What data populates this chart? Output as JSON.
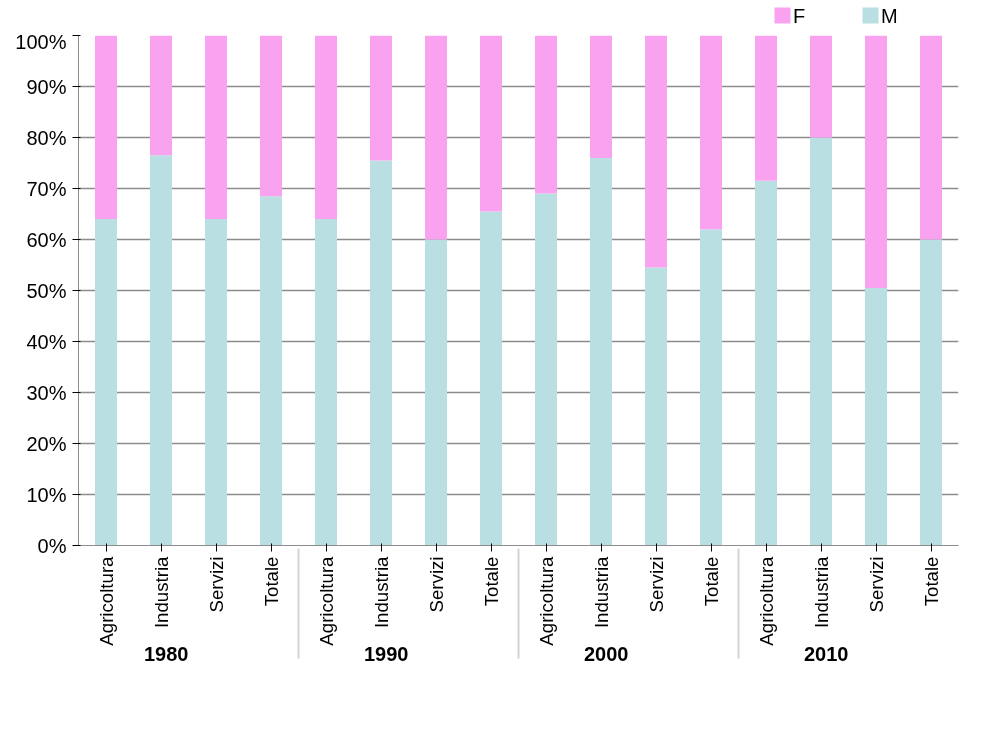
{
  "chart_data": {
    "type": "bar",
    "stacked": true,
    "categories": [
      "Agricoltura",
      "Industria",
      "Servizi",
      "Totale",
      "Agricoltura",
      "Industria",
      "Servizi",
      "Totale",
      "Agricoltura",
      "Industria",
      "Servizi",
      "Totale",
      "Agricoltura",
      "Industria",
      "Servizi",
      "Totale"
    ],
    "annotations": [
      "1980",
      "1990",
      "2000",
      "2010"
    ],
    "series": [
      {
        "name": "M",
        "color": "#b9dfe2",
        "values": [
          64,
          76.5,
          64,
          68.5,
          64,
          75.5,
          60,
          65.5,
          69,
          76,
          54.5,
          62,
          71.5,
          80,
          50.5,
          60
        ]
      },
      {
        "name": "F",
        "color": "#f9a3f0",
        "values": [
          36,
          23.5,
          36,
          31.5,
          36,
          24.5,
          40,
          34.5,
          31,
          24,
          45.5,
          38,
          28.5,
          20,
          49.5,
          40
        ]
      }
    ],
    "ylim": [
      0,
      100
    ],
    "yticks": [
      {
        "value": 0,
        "label": "0%"
      },
      {
        "value": 10,
        "label": "10%"
      },
      {
        "value": 20,
        "label": "20%"
      },
      {
        "value": 30,
        "label": "30%"
      },
      {
        "value": 40,
        "label": "40%"
      },
      {
        "value": 50,
        "label": "50%"
      },
      {
        "value": 60,
        "label": "60%"
      },
      {
        "value": 70,
        "label": "70%"
      },
      {
        "value": 80,
        "label": "80%"
      },
      {
        "value": 90,
        "label": "90%"
      },
      {
        "value": 100,
        "label": "100%"
      }
    ],
    "grid": "y",
    "legend": "top right"
  }
}
